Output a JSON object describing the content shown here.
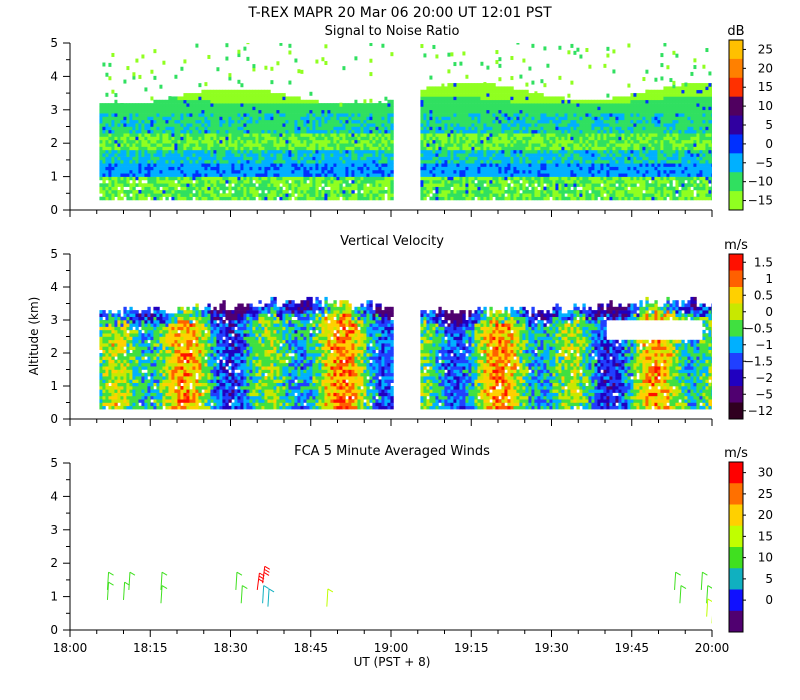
{
  "header": {
    "title": "T-REX   MAPR 20 Mar 06   20:00 UT   12:01   PST"
  },
  "xaxis": {
    "label": "UT  (PST + 8)",
    "range": [
      "18:00",
      "20:00"
    ],
    "ticks": [
      "18:00",
      "18:15",
      "18:30",
      "18:45",
      "19:00",
      "19:15",
      "19:30",
      "19:45",
      "20:00"
    ]
  },
  "yaxis": {
    "label": "Altitude (km)",
    "range": [
      0,
      5
    ],
    "ticks": [
      "0",
      "1",
      "2",
      "3",
      "4",
      "5"
    ]
  },
  "chart_data": [
    {
      "type": "heatmap",
      "title": "Signal to Noise Ratio",
      "colorbar": {
        "unit": "dB",
        "labels": [
          "25",
          "20",
          "15",
          "10",
          "5",
          "0",
          "−5",
          "−10",
          "−15"
        ],
        "colors": [
          "#ffc000",
          "#ff8000",
          "#ff3000",
          "#500060",
          "#3000a0",
          "#0030ff",
          "#00b0ff",
          "#30e060",
          "#90ff20"
        ]
      },
      "data_gap": [
        "19:00",
        "19:05"
      ],
      "bottom_gate_km": 0.3,
      "layers": [
        {
          "top_km": 0.5,
          "value_db": -10
        },
        {
          "top_km": 1.0,
          "value_db": -10
        },
        {
          "top_km": 1.5,
          "value_db": -5
        },
        {
          "top_km": 2.0,
          "value_db": -10
        },
        {
          "top_km": 2.5,
          "value_db": -10
        },
        {
          "top_km": 3.0,
          "value_db": -10
        },
        {
          "top_km": 3.5,
          "value_db": -15
        }
      ]
    },
    {
      "type": "heatmap",
      "title": "Vertical Velocity",
      "colorbar": {
        "unit": "m/s",
        "labels": [
          "1.5",
          "1",
          "0.5",
          "0",
          "−0.5",
          "−1",
          "−1.5",
          "−2",
          "−5",
          "−12"
        ],
        "colors": [
          "#ff1000",
          "#ff6000",
          "#ffd000",
          "#c8e800",
          "#40e040",
          "#00b0ff",
          "#2040ff",
          "#2000c0",
          "#500070",
          "#300020"
        ]
      },
      "data_gap": [
        "19:00",
        "19:05"
      ],
      "bottom_gate_km": 0.3,
      "top_km": [
        3.2,
        3.5
      ]
    },
    {
      "type": "scatter",
      "title": "FCA 5 Minute Averaged Winds",
      "colorbar": {
        "unit": "m/s",
        "labels": [
          "30",
          "25",
          "20",
          "15",
          "10",
          "5",
          "0"
        ],
        "colors": [
          "#ff0000",
          "#ff7000",
          "#ffd000",
          "#c0ff00",
          "#40e020",
          "#10b0c0",
          "#1010ff",
          "#500070"
        ]
      },
      "barbs": [
        {
          "time": "18:07",
          "alt_km": 0.9,
          "speed": 12
        },
        {
          "time": "18:07",
          "alt_km": 1.2,
          "speed": 12
        },
        {
          "time": "18:10",
          "alt_km": 0.9,
          "speed": 12
        },
        {
          "time": "18:11",
          "alt_km": 1.2,
          "speed": 12
        },
        {
          "time": "18:17",
          "alt_km": 1.2,
          "speed": 10
        },
        {
          "time": "18:17",
          "alt_km": 0.8,
          "speed": 10
        },
        {
          "time": "18:31",
          "alt_km": 1.2,
          "speed": 9
        },
        {
          "time": "18:32",
          "alt_km": 0.8,
          "speed": 12
        },
        {
          "time": "18:35",
          "alt_km": 1.2,
          "speed": 28
        },
        {
          "time": "18:36",
          "alt_km": 1.4,
          "speed": 28
        },
        {
          "time": "18:36",
          "alt_km": 0.8,
          "speed": 6
        },
        {
          "time": "18:37",
          "alt_km": 0.7,
          "speed": 4
        },
        {
          "time": "18:48",
          "alt_km": 0.7,
          "speed": 14
        },
        {
          "time": "19:53",
          "alt_km": 1.2,
          "speed": 10
        },
        {
          "time": "19:54",
          "alt_km": 0.8,
          "speed": 10
        },
        {
          "time": "19:58",
          "alt_km": 1.2,
          "speed": 11
        },
        {
          "time": "19:59",
          "alt_km": 0.8,
          "speed": 12
        },
        {
          "time": "19:59",
          "alt_km": 0.4,
          "speed": 14
        },
        {
          "time": "20:00",
          "alt_km": 0.2,
          "speed": 14
        }
      ]
    }
  ]
}
